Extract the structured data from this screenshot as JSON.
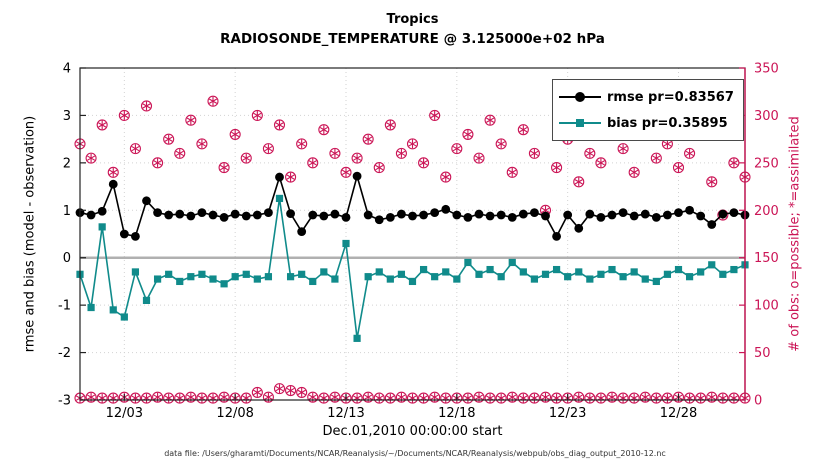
{
  "title": {
    "line1": "Tropics",
    "line2": "RADIOSONDE_TEMPERATURE @ 3.125000e+02 hPa"
  },
  "axes": {
    "ylabel_left": "rmse and bias (model - observation)",
    "ylabel_right": "# of obs: o=possible; *=assimilated",
    "xlabel": "Dec.01,2010 00:00:00 start",
    "left_ticks": [
      4,
      3,
      2,
      1,
      0,
      -1,
      -2,
      -3
    ],
    "right_ticks": [
      350,
      300,
      250,
      200,
      150,
      100,
      50,
      0
    ],
    "x_tick_labels": [
      "12/03",
      "12/08",
      "12/13",
      "12/18",
      "12/23",
      "12/28"
    ]
  },
  "legend": [
    {
      "label": "rmse pr=0.83567",
      "marker": "filled-circle"
    },
    {
      "label": "bias pr=0.35895",
      "marker": "filled-square"
    }
  ],
  "caption": "data file: /Users/gharamti/Documents/NCAR/Reanalysis/~/Documents/NCAR/Reanalysis/webpub/obs_diag_output_2010-12.nc",
  "colors": {
    "rmse": "#000000",
    "bias": "#108b8b",
    "obs": "#cb1556",
    "zero_line": "#b0b0b0",
    "grid": "#d2d2d2",
    "axis": "#222222"
  },
  "chart_data": {
    "type": "line",
    "x_start": "Dec 1, 2010 00:00",
    "x_step_hours": 12,
    "n_points": 61,
    "ylim_left": [
      -3,
      4
    ],
    "ylim_right": [
      0,
      350
    ],
    "x_tick_indices": [
      4,
      14,
      24,
      34,
      44,
      54
    ],
    "x_tick_labels": [
      "12/03",
      "12/08",
      "12/13",
      "12/18",
      "12/23",
      "12/28"
    ],
    "grid": true,
    "legend_position": "top-right-inside",
    "series": [
      {
        "name": "rmse",
        "legend": "rmse pr=0.83567",
        "axis": "left",
        "marker": "filled-circle",
        "values": [
          0.95,
          0.9,
          0.98,
          1.55,
          0.5,
          0.45,
          1.2,
          0.95,
          0.9,
          0.92,
          0.88,
          0.95,
          0.9,
          0.85,
          0.92,
          0.88,
          0.9,
          0.95,
          1.7,
          0.93,
          0.55,
          0.9,
          0.88,
          0.92,
          0.85,
          1.72,
          0.9,
          0.8,
          0.85,
          0.92,
          0.88,
          0.9,
          0.95,
          1.02,
          0.9,
          0.85,
          0.92,
          0.88,
          0.9,
          0.85,
          0.92,
          0.95,
          0.88,
          0.45,
          0.9,
          0.62,
          0.92,
          0.85,
          0.9,
          0.95,
          0.88,
          0.92,
          0.85,
          0.9,
          0.95,
          1.0,
          0.88,
          0.7,
          0.92,
          0.95,
          0.9
        ]
      },
      {
        "name": "bias",
        "legend": "bias pr=0.35895",
        "axis": "left",
        "marker": "filled-square",
        "values": [
          -0.35,
          -1.05,
          0.65,
          -1.1,
          -1.25,
          -0.3,
          -0.9,
          -0.45,
          -0.35,
          -0.5,
          -0.4,
          -0.35,
          -0.45,
          -0.55,
          -0.4,
          -0.35,
          -0.45,
          -0.4,
          1.25,
          -0.4,
          -0.35,
          -0.5,
          -0.3,
          -0.45,
          0.3,
          -1.7,
          -0.4,
          -0.3,
          -0.45,
          -0.35,
          -0.5,
          -0.25,
          -0.4,
          -0.3,
          -0.45,
          -0.1,
          -0.35,
          -0.25,
          -0.4,
          -0.1,
          -0.3,
          -0.45,
          -0.35,
          -0.25,
          -0.4,
          -0.3,
          -0.45,
          -0.35,
          -0.25,
          -0.4,
          -0.3,
          -0.45,
          -0.5,
          -0.35,
          -0.25,
          -0.4,
          -0.3,
          -0.15,
          -0.35,
          -0.25,
          -0.15
        ]
      },
      {
        "name": "num_obs_possible",
        "axis": "right",
        "marker": "circle-asterisk",
        "values": [
          270,
          255,
          290,
          240,
          300,
          265,
          310,
          250,
          275,
          260,
          295,
          270,
          315,
          245,
          280,
          255,
          300,
          265,
          290,
          235,
          270,
          250,
          285,
          260,
          240,
          255,
          275,
          245,
          290,
          260,
          270,
          250,
          300,
          235,
          265,
          280,
          255,
          295,
          270,
          240,
          285,
          260,
          200,
          245,
          275,
          230,
          260,
          250,
          290,
          265,
          240,
          280,
          255,
          270,
          245,
          260,
          285,
          230,
          195,
          250,
          235
        ]
      },
      {
        "name": "num_obs_assimilated_low_row",
        "axis": "right",
        "marker": "circle-asterisk",
        "values": [
          2,
          3,
          2,
          2,
          3,
          2,
          2,
          3,
          2,
          2,
          3,
          2,
          2,
          3,
          2,
          2,
          8,
          3,
          12,
          10,
          8,
          3,
          2,
          3,
          2,
          2,
          3,
          2,
          2,
          3,
          2,
          2,
          3,
          2,
          2,
          2,
          3,
          2,
          2,
          3,
          2,
          2,
          3,
          2,
          2,
          3,
          2,
          2,
          3,
          2,
          2,
          3,
          2,
          2,
          3,
          2,
          2,
          3,
          2,
          2,
          2
        ]
      }
    ]
  }
}
